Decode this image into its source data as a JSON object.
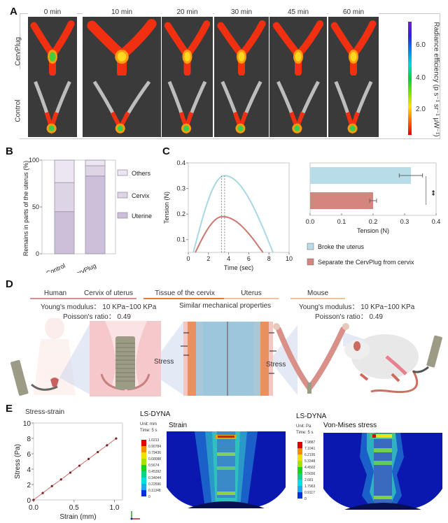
{
  "panel_labels": [
    "A",
    "B",
    "C",
    "D",
    "E"
  ],
  "panelA": {
    "timepoints": [
      "0 min",
      "10 min",
      "20 min",
      "30 min",
      "45 min",
      "60 min"
    ],
    "rows": [
      "CervPlug",
      "Control"
    ],
    "colorbar": {
      "title": "Radiance efficiency (p s⁻¹ sr⁻¹ μW⁻¹)",
      "ticks": [
        "6.0",
        "4.0",
        "2.0"
      ],
      "range": [
        0.5,
        7.0
      ],
      "colors": [
        "#e80000",
        "#ff6a00",
        "#ffe000",
        "#7de000",
        "#00d040",
        "#00d8d8",
        "#0080f0",
        "#3020e0",
        "#7020d0"
      ]
    },
    "cervplug_cervix_green": [
      true,
      false,
      false,
      false,
      false,
      false
    ],
    "control_cervix_green": [
      true,
      true,
      true,
      true,
      true,
      true
    ]
  },
  "chart_data": [
    {
      "id": "B",
      "type": "bar",
      "stacked": true,
      "categories": [
        "Control",
        "CervPlug"
      ],
      "series": [
        {
          "name": "Uterine",
          "values": [
            45,
            83
          ],
          "color": "#cbbfd9"
        },
        {
          "name": "Cervix",
          "values": [
            31,
            11
          ],
          "color": "#ddd5e6"
        },
        {
          "name": "Others",
          "values": [
            24,
            6
          ],
          "color": "#ebe6f0"
        }
      ],
      "ylabel": "Remains in parts of the uterus (%)",
      "yticks": [
        "0",
        "50",
        "100"
      ],
      "ylim": [
        0,
        100
      ],
      "legend": [
        "Others",
        "Cervix",
        "Uterine"
      ],
      "legend_position": "right"
    },
    {
      "id": "C-curve",
      "type": "line",
      "xlabel": "Time (sec)",
      "ylabel": "Tension (N)",
      "xlim": [
        0,
        10
      ],
      "ylim": [
        0.05,
        0.4
      ],
      "xticks": [
        "0",
        "2",
        "4",
        "6",
        "8",
        "10"
      ],
      "yticks": [
        "0.1",
        "0.2",
        "0.3",
        "0.4"
      ],
      "series": [
        {
          "name": "Broke the uterus",
          "color": "#a8d8e4",
          "start": 0.5,
          "peak_x": 3.6,
          "peak_y": 0.35,
          "end": 8.4
        },
        {
          "name": "Separate the CervPlug from cervix",
          "color": "#cc7770",
          "start": 0.7,
          "peak_x": 3.4,
          "peak_y": 0.19,
          "end": 7.4
        }
      ],
      "dashed_markers_x": [
        3.3,
        3.6
      ]
    },
    {
      "id": "C-bar",
      "type": "bar",
      "orientation": "horizontal",
      "categories": [
        "Broke the uterus",
        "Separate the CervPlug from cervix"
      ],
      "values": [
        0.32,
        0.2
      ],
      "errors": [
        0.037,
        0.011
      ],
      "colors": [
        "#b8dde8",
        "#d4857e"
      ],
      "xlabel": "Tension (N)",
      "xlim": [
        0,
        0.4
      ],
      "xticks": [
        "0.0",
        "0.1",
        "0.2",
        "0.3",
        "0.4"
      ],
      "significance": "**",
      "legend": [
        "Broke the uterus",
        "Separate the CervPlug from cervix"
      ],
      "legend_position": "bottom"
    },
    {
      "id": "E-stress-strain",
      "type": "scatter",
      "title": "Stress-strain",
      "xlabel": "Strain (mm)",
      "ylabel": "Stress (Pa)",
      "xlim": [
        0,
        1.1
      ],
      "ylim": [
        0,
        10
      ],
      "xticks": [
        "0.0",
        "0.5",
        "1.0"
      ],
      "yticks": [
        "0",
        "2",
        "4",
        "6",
        "8",
        "10"
      ],
      "x": [
        0,
        0.113,
        0.227,
        0.34,
        0.454,
        0.567,
        0.681,
        0.794,
        0.908,
        1.021
      ],
      "y": [
        0,
        0.9,
        1.8,
        2.66,
        3.55,
        4.45,
        5.33,
        6.22,
        7.1,
        7.99
      ],
      "color": "#c8706a"
    }
  ],
  "panelD": {
    "headers": [
      {
        "label": "Human",
        "color": "#d8908a"
      },
      {
        "label": "Cervix of uterus",
        "color": "#d8908a"
      },
      {
        "label": "Tissue  of the cervix",
        "color": "#e07b3a"
      },
      {
        "label": "Uterus",
        "color": "#f0c49a"
      },
      {
        "label": "Mouse",
        "color": "#f0c49a"
      }
    ],
    "left_props": {
      "youngs": "Young's modulus： 10 KPa~100 KPa",
      "poisson": "Poisson's ratio： 0.49"
    },
    "center_text": "Similar mechanical properties",
    "right_props": {
      "youngs": "Young's modulus： 10 KPa~100 KPa",
      "poisson": "Poisson's ratio： 0.49"
    },
    "stress_label": "Stress"
  },
  "panelE": {
    "sims": [
      {
        "software": "LS-DYNA",
        "unit": "Unit: mm",
        "time": "Time: 5 s",
        "title": "Strain",
        "legend_values": [
          "1.0213",
          "0.90784",
          "0.79436",
          "0.68088",
          "0.5674",
          "0.45392",
          "0.34044",
          "0.22696",
          "0.11348",
          "0"
        ]
      },
      {
        "software": "LS-DYNA",
        "unit": "Unit: Pa",
        "time": "Time: 5 s",
        "title": "Von-Mises stress",
        "legend_values": [
          "7.9887",
          "7.1041",
          "6.2195",
          "5.3348",
          "4.4502",
          "3.5656",
          "2.681",
          "1.7963",
          "0.9117",
          "0"
        ]
      }
    ],
    "legend_colors": [
      "#e00000",
      "#f09000",
      "#f0e000",
      "#a8e000",
      "#20d020",
      "#10d090",
      "#00e0e0",
      "#20a8e8",
      "#0030e0"
    ]
  }
}
